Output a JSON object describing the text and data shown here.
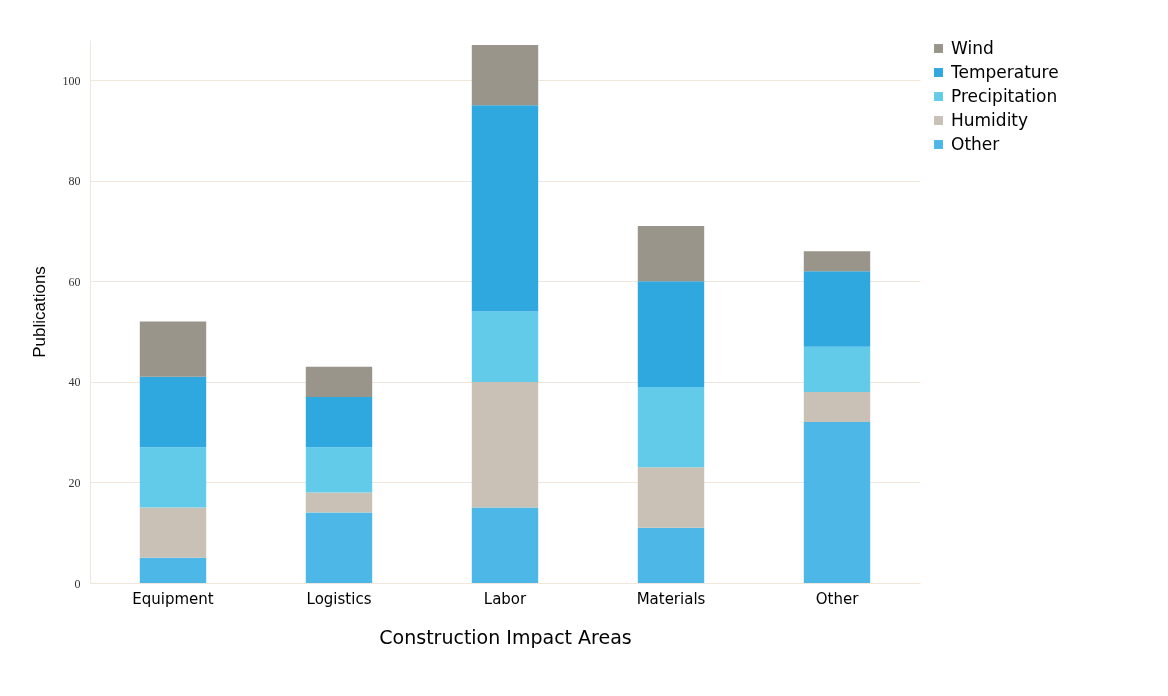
{
  "chart_data": {
    "type": "bar",
    "stacked": true,
    "xlabel": "Construction Impact Areas",
    "ylabel": "Publications",
    "categories": [
      "Equipment",
      "Logistics",
      "Labor",
      "Materials",
      "Other"
    ],
    "series": [
      {
        "name": "Other",
        "color": "#4db8e8",
        "values": [
          5,
          14,
          15,
          11,
          32
        ]
      },
      {
        "name": "Humidity",
        "color": "#c9c1b6",
        "values": [
          10,
          4,
          25,
          12,
          6
        ]
      },
      {
        "name": "Precipitation",
        "color": "#62cbea",
        "values": [
          12,
          9,
          14,
          16,
          9
        ]
      },
      {
        "name": "Temperature",
        "color": "#2ea8df",
        "values": [
          14,
          10,
          41,
          21,
          15
        ]
      },
      {
        "name": "Wind",
        "color": "#9a958a",
        "values": [
          11,
          6,
          12,
          11,
          4
        ]
      }
    ],
    "ylim": [
      0,
      108
    ],
    "yticks": [
      0,
      20,
      40,
      60,
      80,
      100
    ],
    "grid": "y",
    "legend": "right"
  }
}
